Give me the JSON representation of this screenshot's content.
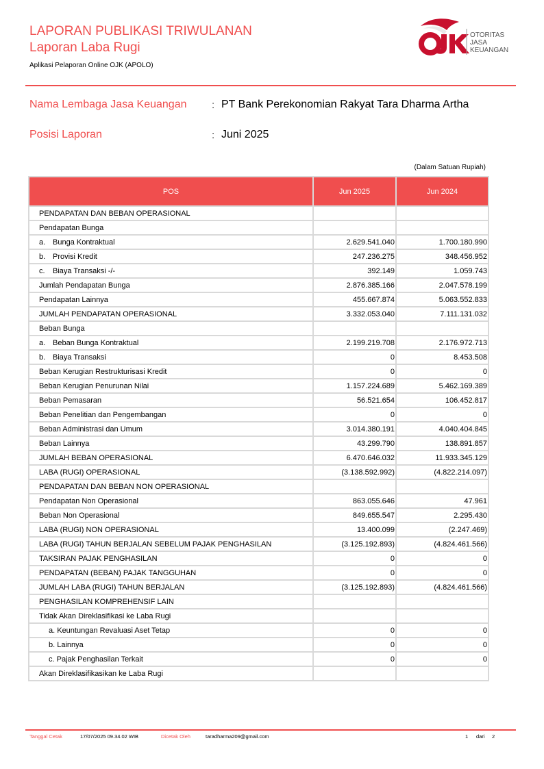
{
  "header": {
    "title": "LAPORAN PUBLIKASI TRIWULANAN",
    "subtitle": "Laporan Laba Rugi",
    "app": "Aplikasi Pelaporan Online OJK (APOLO)"
  },
  "logo": {
    "mark": "OJK",
    "text1": "OTORITAS",
    "text2": "JASA",
    "text3": "KEUANGAN",
    "color": "#c8102e"
  },
  "info": {
    "lembaga_label": "Nama Lembaga Jasa Keuangan",
    "lembaga_value": "PT Bank Perekonomian Rakyat Tara Dharma Artha",
    "posisi_label": "Posisi Laporan",
    "posisi_value": "Juni 2025",
    "colon": ":"
  },
  "unit_note": "(Dalam Satuan Rupiah)",
  "table": {
    "headers": [
      "POS",
      "Jun 2025",
      "Jun 2024"
    ],
    "rows": [
      {
        "label": "PENDAPATAN DAN BEBAN OPERASIONAL",
        "v1": "",
        "v2": ""
      },
      {
        "label": "Pendapatan Bunga",
        "v1": "",
        "v2": ""
      },
      {
        "marker": "a.",
        "label": "Bunga Kontraktual",
        "v1": "2.629.541.040",
        "v2": "1.700.180.990"
      },
      {
        "marker": "b.",
        "label": "Provisi Kredit",
        "v1": "247.236.275",
        "v2": "348.456.952"
      },
      {
        "marker": "c.",
        "label": "Biaya Transaksi -/-",
        "v1": "392.149",
        "v2": "1.059.743"
      },
      {
        "label": "Jumlah Pendapatan Bunga",
        "v1": "2.876.385.166",
        "v2": "2.047.578.199"
      },
      {
        "label": "Pendapatan Lainnya",
        "v1": "455.667.874",
        "v2": "5.063.552.833"
      },
      {
        "label": "JUMLAH PENDAPATAN OPERASIONAL",
        "v1": "3.332.053.040",
        "v2": "7.111.131.032"
      },
      {
        "label": "Beban Bunga",
        "v1": "",
        "v2": ""
      },
      {
        "marker": "a.",
        "label": "Beban Bunga Kontraktual",
        "v1": "2.199.219.708",
        "v2": "2.176.972.713"
      },
      {
        "marker": "b.",
        "label": "Biaya Transaksi",
        "v1": "0",
        "v2": "8.453.508"
      },
      {
        "label": "Beban Kerugian Restrukturisasi Kredit",
        "v1": "0",
        "v2": "0"
      },
      {
        "label": "Beban Kerugian Penurunan Nilai",
        "v1": "1.157.224.689",
        "v2": "5.462.169.389"
      },
      {
        "label": "Beban Pemasaran",
        "v1": "56.521.654",
        "v2": "106.452.817"
      },
      {
        "label": "Beban Penelitian dan Pengembangan",
        "v1": "0",
        "v2": "0"
      },
      {
        "label": "Beban Administrasi dan Umum",
        "v1": "3.014.380.191",
        "v2": "4.040.404.845"
      },
      {
        "label": "Beban Lainnya",
        "v1": "43.299.790",
        "v2": "138.891.857"
      },
      {
        "label": "JUMLAH BEBAN OPERASIONAL",
        "v1": "6.470.646.032",
        "v2": "11.933.345.129"
      },
      {
        "label": "LABA (RUGI) OPERASIONAL",
        "v1": "(3.138.592.992)",
        "v2": "(4.822.214.097)"
      },
      {
        "label": "PENDAPATAN DAN BEBAN NON OPERASIONAL",
        "v1": "",
        "v2": ""
      },
      {
        "label": "Pendapatan Non Operasional",
        "v1": "863.055.646",
        "v2": "47.961"
      },
      {
        "label": "Beban Non Operasional",
        "v1": "849.655.547",
        "v2": "2.295.430"
      },
      {
        "label": "LABA (RUGI) NON OPERASIONAL",
        "v1": "13.400.099",
        "v2": "(2.247.469)"
      },
      {
        "label": "LABA (RUGI) TAHUN BERJALAN SEBELUM PAJAK PENGHASILAN",
        "v1": "(3.125.192.893)",
        "v2": "(4.824.461.566)"
      },
      {
        "label": "TAKSIRAN PAJAK PENGHASILAN",
        "v1": "0",
        "v2": "0"
      },
      {
        "label": "PENDAPATAN (BEBAN) PAJAK TANGGUHAN",
        "v1": "0",
        "v2": "0"
      },
      {
        "label": "JUMLAH LABA (RUGI) TAHUN BERJALAN",
        "v1": "(3.125.192.893)",
        "v2": "(4.824.461.566)"
      },
      {
        "label": "PENGHASILAN KOMPREHENSIF LAIN",
        "v1": "",
        "v2": ""
      },
      {
        "label": "Tidak Akan Direklasifikasi ke Laba Rugi",
        "v1": "",
        "v2": ""
      },
      {
        "sub": true,
        "label": "a. Keuntungan Revaluasi  Aset Tetap",
        "v1": "0",
        "v2": "0"
      },
      {
        "sub": true,
        "label": "b. Lainnya",
        "v1": "0",
        "v2": "0"
      },
      {
        "sub": true,
        "label": "c. Pajak Penghasilan Terkait",
        "v1": "0",
        "v2": "0"
      },
      {
        "label": "Akan Direklasifikasikan ke Laba Rugi",
        "v1": "",
        "v2": ""
      }
    ]
  },
  "footer": {
    "tanggal_label": "Tanggal Cetak",
    "tanggal_value": "17/07/2025 09.34.02 WIB",
    "dicetak_label": "Dicetak Oleh",
    "dicetak_value": "taradharma209@gmail.com",
    "page": "1",
    "dari": "dari",
    "total": "2"
  }
}
